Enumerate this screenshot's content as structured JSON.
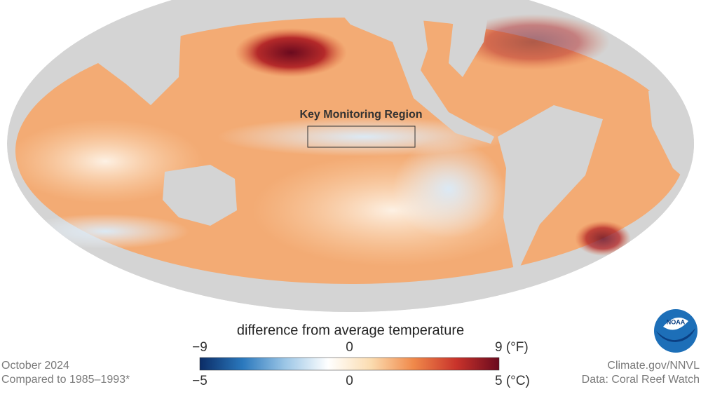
{
  "map": {
    "annotation": "Key Monitoring Region"
  },
  "legend": {
    "title": "difference from average temperature",
    "fahrenheit": {
      "lim": [
        -9,
        9
      ],
      "ticks": [
        {
          "value": -9,
          "label": "−9"
        },
        0,
        {
          "value": 9,
          "label": "9 (°F)"
        }
      ]
    },
    "celsius": {
      "lim": [
        -5,
        5
      ],
      "ticks": [
        {
          "value": -5,
          "label": "−5"
        },
        0,
        {
          "value": 5,
          "label": "5 (°C)"
        }
      ]
    },
    "colors": [
      "#0b2c66",
      "#2a78bd",
      "#9cc6e6",
      "#ffffff",
      "#fbdcb0",
      "#f0894a",
      "#c9332b",
      "#6a0a1e"
    ]
  },
  "footer": {
    "date": "October 2024",
    "baseline": "Compared to 1985–1993*",
    "credit": "Climate.gov/NNVL",
    "source": "Data: Coral Reef Watch",
    "logo": "NOAA"
  }
}
